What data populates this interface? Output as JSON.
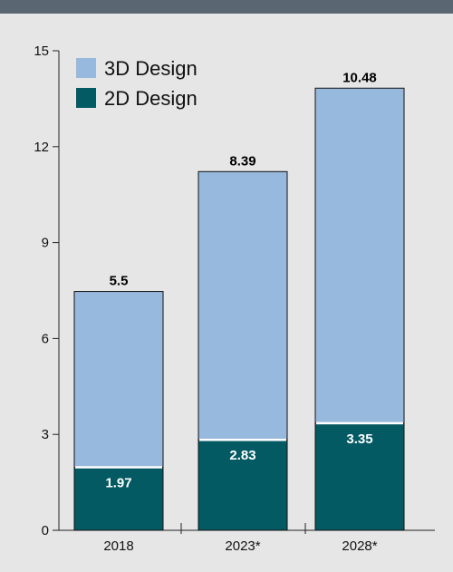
{
  "chart_data": {
    "type": "bar",
    "stacked": true,
    "categories": [
      "2018",
      "2023*",
      "2028*"
    ],
    "series": [
      {
        "name": "2D Design",
        "values": [
          1.97,
          2.83,
          3.35
        ],
        "color": "#045a63",
        "label_color": "#ffffff"
      },
      {
        "name": "3D Design",
        "values": [
          5.5,
          8.39,
          10.48
        ],
        "color": "#98b9de",
        "label_color": "#000000"
      }
    ],
    "totals": [
      7.47,
      11.22,
      13.83
    ],
    "yticks": [
      "0",
      "3",
      "6",
      "9",
      "12",
      "15"
    ],
    "ylim": [
      0,
      15
    ],
    "grid": false,
    "legend": "top-left",
    "background": "#e6e6e6",
    "header_bar_color": "#5a6772"
  }
}
